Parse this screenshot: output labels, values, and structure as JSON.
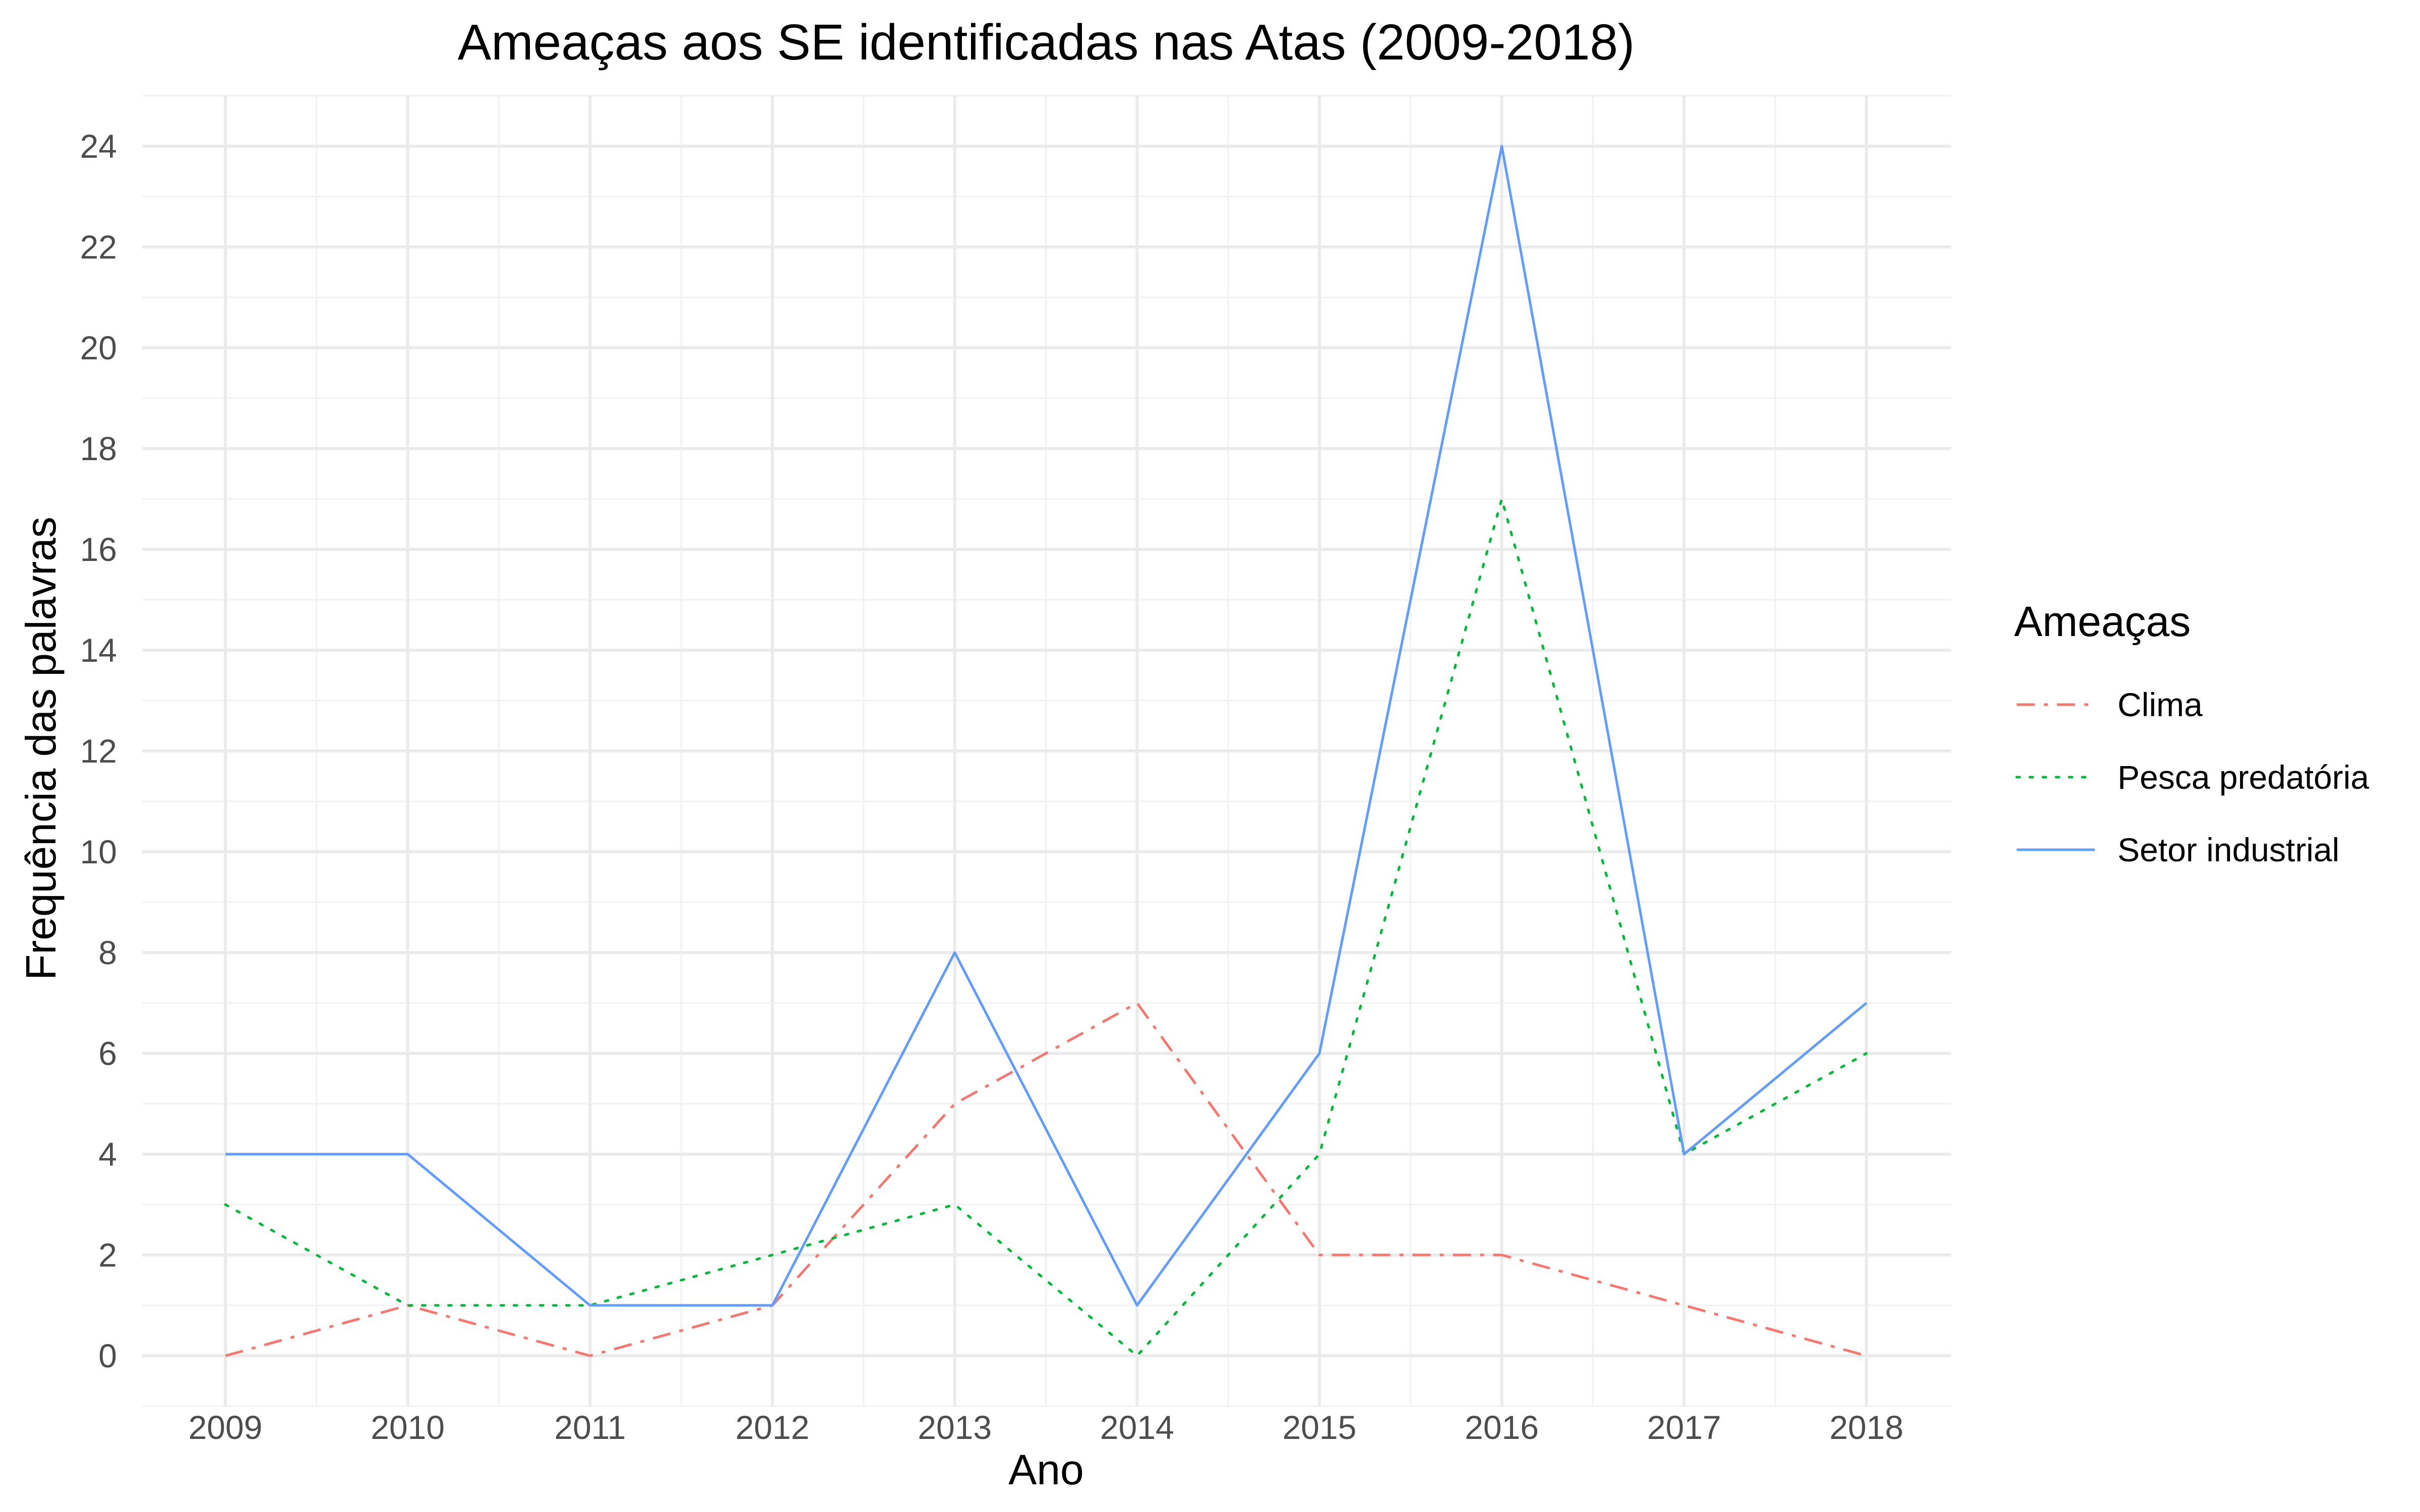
{
  "chart_data": {
    "type": "line",
    "title": "Ameaças aos SE identificadas nas Atas (2009-2018)",
    "xlabel": "Ano",
    "ylabel": "Frequência das palavras",
    "x": [
      "2009",
      "2010",
      "2011",
      "2012",
      "2013",
      "2014",
      "2015",
      "2016",
      "2017",
      "2018"
    ],
    "y_ticks": [
      "0",
      "2",
      "4",
      "6",
      "8",
      "10",
      "12",
      "14",
      "16",
      "18",
      "20",
      "22",
      "24"
    ],
    "ylim": [
      -1,
      25
    ],
    "grid": true,
    "legend": {
      "title": "Ameaças",
      "position": "right"
    },
    "series": [
      {
        "name": "Clima",
        "values": [
          0,
          1,
          0,
          1,
          5,
          7,
          2,
          2,
          1,
          0
        ],
        "color": "#F8766D",
        "line_style": "dashdot"
      },
      {
        "name": "Pesca predatória",
        "values": [
          3,
          1,
          1,
          2,
          3,
          0,
          4,
          17,
          4,
          6
        ],
        "color": "#00BA38",
        "line_style": "dotted"
      },
      {
        "name": "Setor industrial",
        "values": [
          4,
          4,
          1,
          1,
          8,
          1,
          6,
          24,
          4,
          7
        ],
        "color": "#619CFF",
        "line_style": "solid"
      }
    ]
  }
}
